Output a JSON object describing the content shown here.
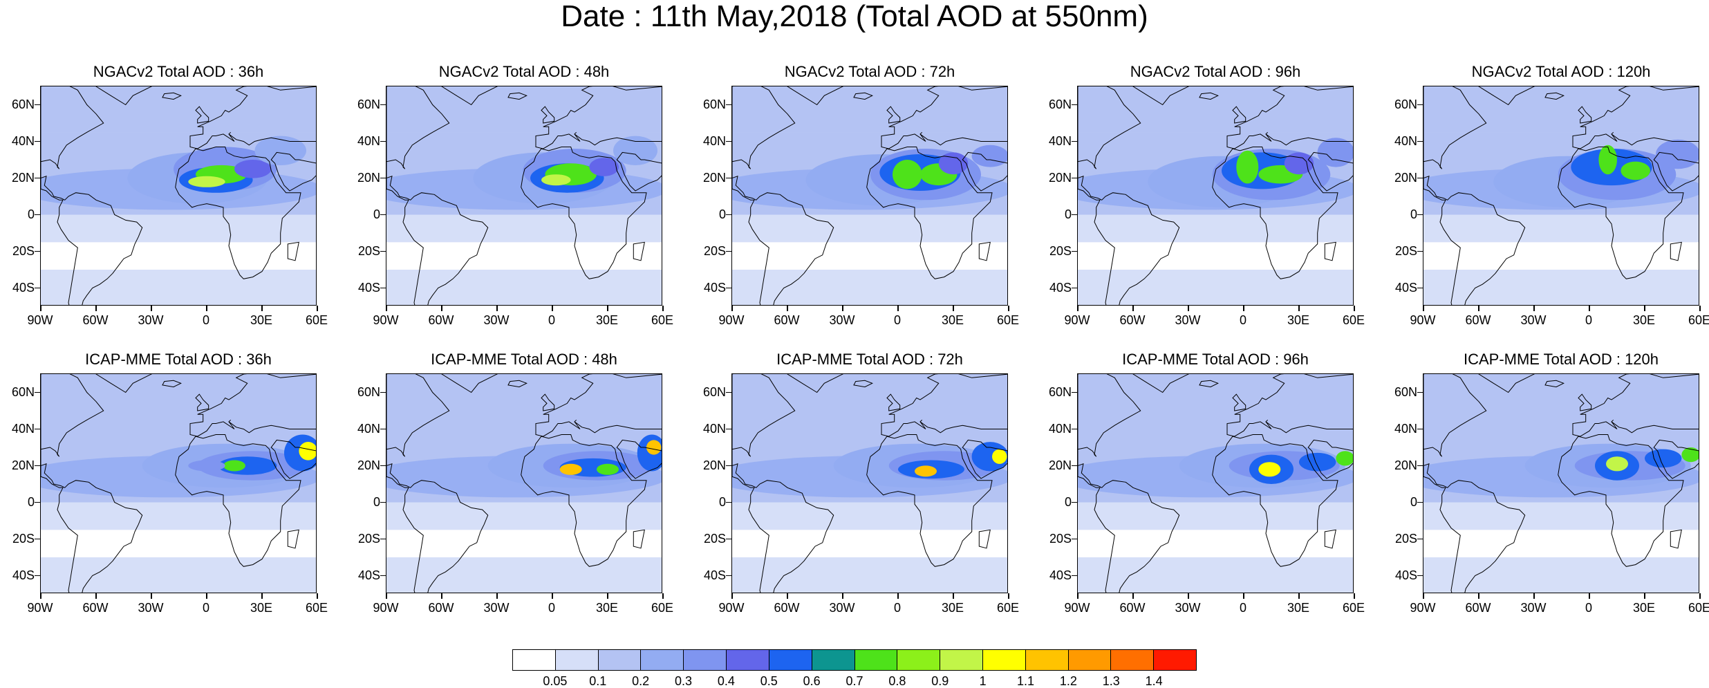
{
  "title": "Date : 11th May,2018 (Total AOD at 550nm)",
  "panels": [
    {
      "title": "NGACv2 Total AOD : 36h",
      "model": "NGACv2",
      "lead": "36h"
    },
    {
      "title": "NGACv2 Total AOD : 48h",
      "model": "NGACv2",
      "lead": "48h"
    },
    {
      "title": "NGACv2 Total AOD : 72h",
      "model": "NGACv2",
      "lead": "72h"
    },
    {
      "title": "NGACv2 Total AOD : 96h",
      "model": "NGACv2",
      "lead": "96h"
    },
    {
      "title": "NGACv2 Total AOD : 120h",
      "model": "NGACv2",
      "lead": "120h"
    },
    {
      "title": "ICAP-MME Total AOD : 36h",
      "model": "ICAP-MME",
      "lead": "36h"
    },
    {
      "title": "ICAP-MME Total AOD : 48h",
      "model": "ICAP-MME",
      "lead": "48h"
    },
    {
      "title": "ICAP-MME Total AOD : 72h",
      "model": "ICAP-MME",
      "lead": "72h"
    },
    {
      "title": "ICAP-MME Total AOD : 96h",
      "model": "ICAP-MME",
      "lead": "96h"
    },
    {
      "title": "ICAP-MME Total AOD : 120h",
      "model": "ICAP-MME",
      "lead": "120h"
    }
  ],
  "map": {
    "lon_range": [
      -90,
      60
    ],
    "lat_range": [
      -50,
      70
    ],
    "lat_ticks": [
      {
        "value": 60,
        "label": "60N"
      },
      {
        "value": 40,
        "label": "40N"
      },
      {
        "value": 20,
        "label": "20N"
      },
      {
        "value": 0,
        "label": "0"
      },
      {
        "value": -20,
        "label": "20S"
      },
      {
        "value": -40,
        "label": "40S"
      }
    ],
    "lon_ticks": [
      {
        "value": -90,
        "label": "90W"
      },
      {
        "value": -60,
        "label": "60W"
      },
      {
        "value": -30,
        "label": "30W"
      },
      {
        "value": 0,
        "label": "0"
      },
      {
        "value": 30,
        "label": "30E"
      },
      {
        "value": 60,
        "label": "60E"
      }
    ]
  },
  "colorbar": {
    "colors": [
      "#ffffff",
      "#d6dff8",
      "#b4c3f3",
      "#93acf2",
      "#7f95f0",
      "#6366ea",
      "#1d64f0",
      "#0d9590",
      "#4ee21a",
      "#8cf01a",
      "#c2f548",
      "#ffff00",
      "#ffc300",
      "#ff9a00",
      "#ff6f00",
      "#ff1a00"
    ],
    "labels": [
      "0.05",
      "0.1",
      "0.2",
      "0.3",
      "0.4",
      "0.5",
      "0.6",
      "0.7",
      "0.8",
      "0.9",
      "1",
      "1.1",
      "1.2",
      "1.3",
      "1.4"
    ]
  }
}
